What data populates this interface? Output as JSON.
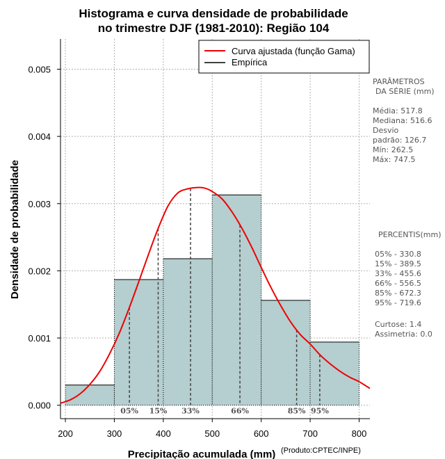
{
  "chart_data": {
    "type": "histogram",
    "title_line1": "Histograma e curva densidade de probabilidade",
    "title_line2": "no trimestre DJF (1981-2010): Região 104",
    "xlabel": "Precipitação acumulada (mm)",
    "ylabel": "Densidade de probabilidade",
    "credit": "(Produto:CPTEC/INPE)",
    "xlim": [
      190,
      822
    ],
    "ylim": [
      -0.0002,
      0.00545
    ],
    "x_ticks": [
      200,
      300,
      400,
      500,
      600,
      700,
      800
    ],
    "y_ticks": [
      0.0,
      0.001,
      0.002,
      0.003,
      0.004,
      0.005
    ],
    "y_tick_labels": [
      "0.000",
      "0.001",
      "0.002",
      "0.003",
      "0.004",
      "0.005"
    ],
    "grid": true,
    "bins": [
      {
        "from": 200,
        "to": 300,
        "density": 0.0003
      },
      {
        "from": 300,
        "to": 400,
        "density": 0.00187
      },
      {
        "from": 400,
        "to": 500,
        "density": 0.00218
      },
      {
        "from": 500,
        "to": 600,
        "density": 0.00313
      },
      {
        "from": 600,
        "to": 700,
        "density": 0.00156
      },
      {
        "from": 700,
        "to": 800,
        "density": 0.00094
      }
    ],
    "bar_color": "#b5cecf",
    "curve": {
      "name": "Curva ajustada (função Gama)",
      "color": "#ee0000",
      "x": [
        190,
        210,
        230,
        250,
        270,
        290,
        310,
        330,
        350,
        370,
        390,
        410,
        430,
        450,
        470,
        485,
        500,
        520,
        540,
        560,
        580,
        600,
        620,
        640,
        660,
        680,
        700,
        720,
        740,
        760,
        780,
        800,
        822
      ],
      "y": [
        3e-05,
        8e-05,
        0.00017,
        0.00031,
        0.0005,
        0.00076,
        0.00107,
        0.00144,
        0.00184,
        0.00225,
        0.00264,
        0.00297,
        0.00316,
        0.00322,
        0.00324,
        0.00323,
        0.00318,
        0.00307,
        0.00288,
        0.00264,
        0.00236,
        0.00205,
        0.00175,
        0.00148,
        0.00124,
        0.00105,
        0.00091,
        0.00075,
        0.00062,
        0.00051,
        0.00042,
        0.00035,
        0.00025
      ]
    },
    "percentile_markers": [
      {
        "label": "05%",
        "value": 330.8
      },
      {
        "label": "15%",
        "value": 389.5
      },
      {
        "label": "33%",
        "value": 455.6
      },
      {
        "label": "66%",
        "value": 556.5
      },
      {
        "label": "85%",
        "value": 672.3
      },
      {
        "label": "95%",
        "value": 719.6
      }
    ],
    "legend": {
      "placement": "top-right",
      "items": [
        {
          "label": "Curva ajustada (função Gama)",
          "color": "#ee0000"
        },
        {
          "label": "Empírica",
          "color": "#000000"
        }
      ]
    }
  },
  "side_panel": {
    "params_title_1": "PARÂMETROS",
    "params_title_2": "DA SÉRIE (mm)",
    "media": "Média:  517.8",
    "mediana": "Mediana:  516.6",
    "desvio_1": "Desvio",
    "desvio_2": "padrão:  126.7",
    "min": "Mín:  262.5",
    "max": "Máx:  747.5",
    "percentis_title": "PERCENTIS(mm)",
    "percentis": [
      "05% -  330.8",
      "15% -  389.5",
      "33% -  455.6",
      "66% -  556.5",
      "85% -  672.3",
      "95% -  719.6"
    ],
    "curtose": "Curtose:  1.4",
    "assimetria": "Assimetria:  0.0"
  }
}
